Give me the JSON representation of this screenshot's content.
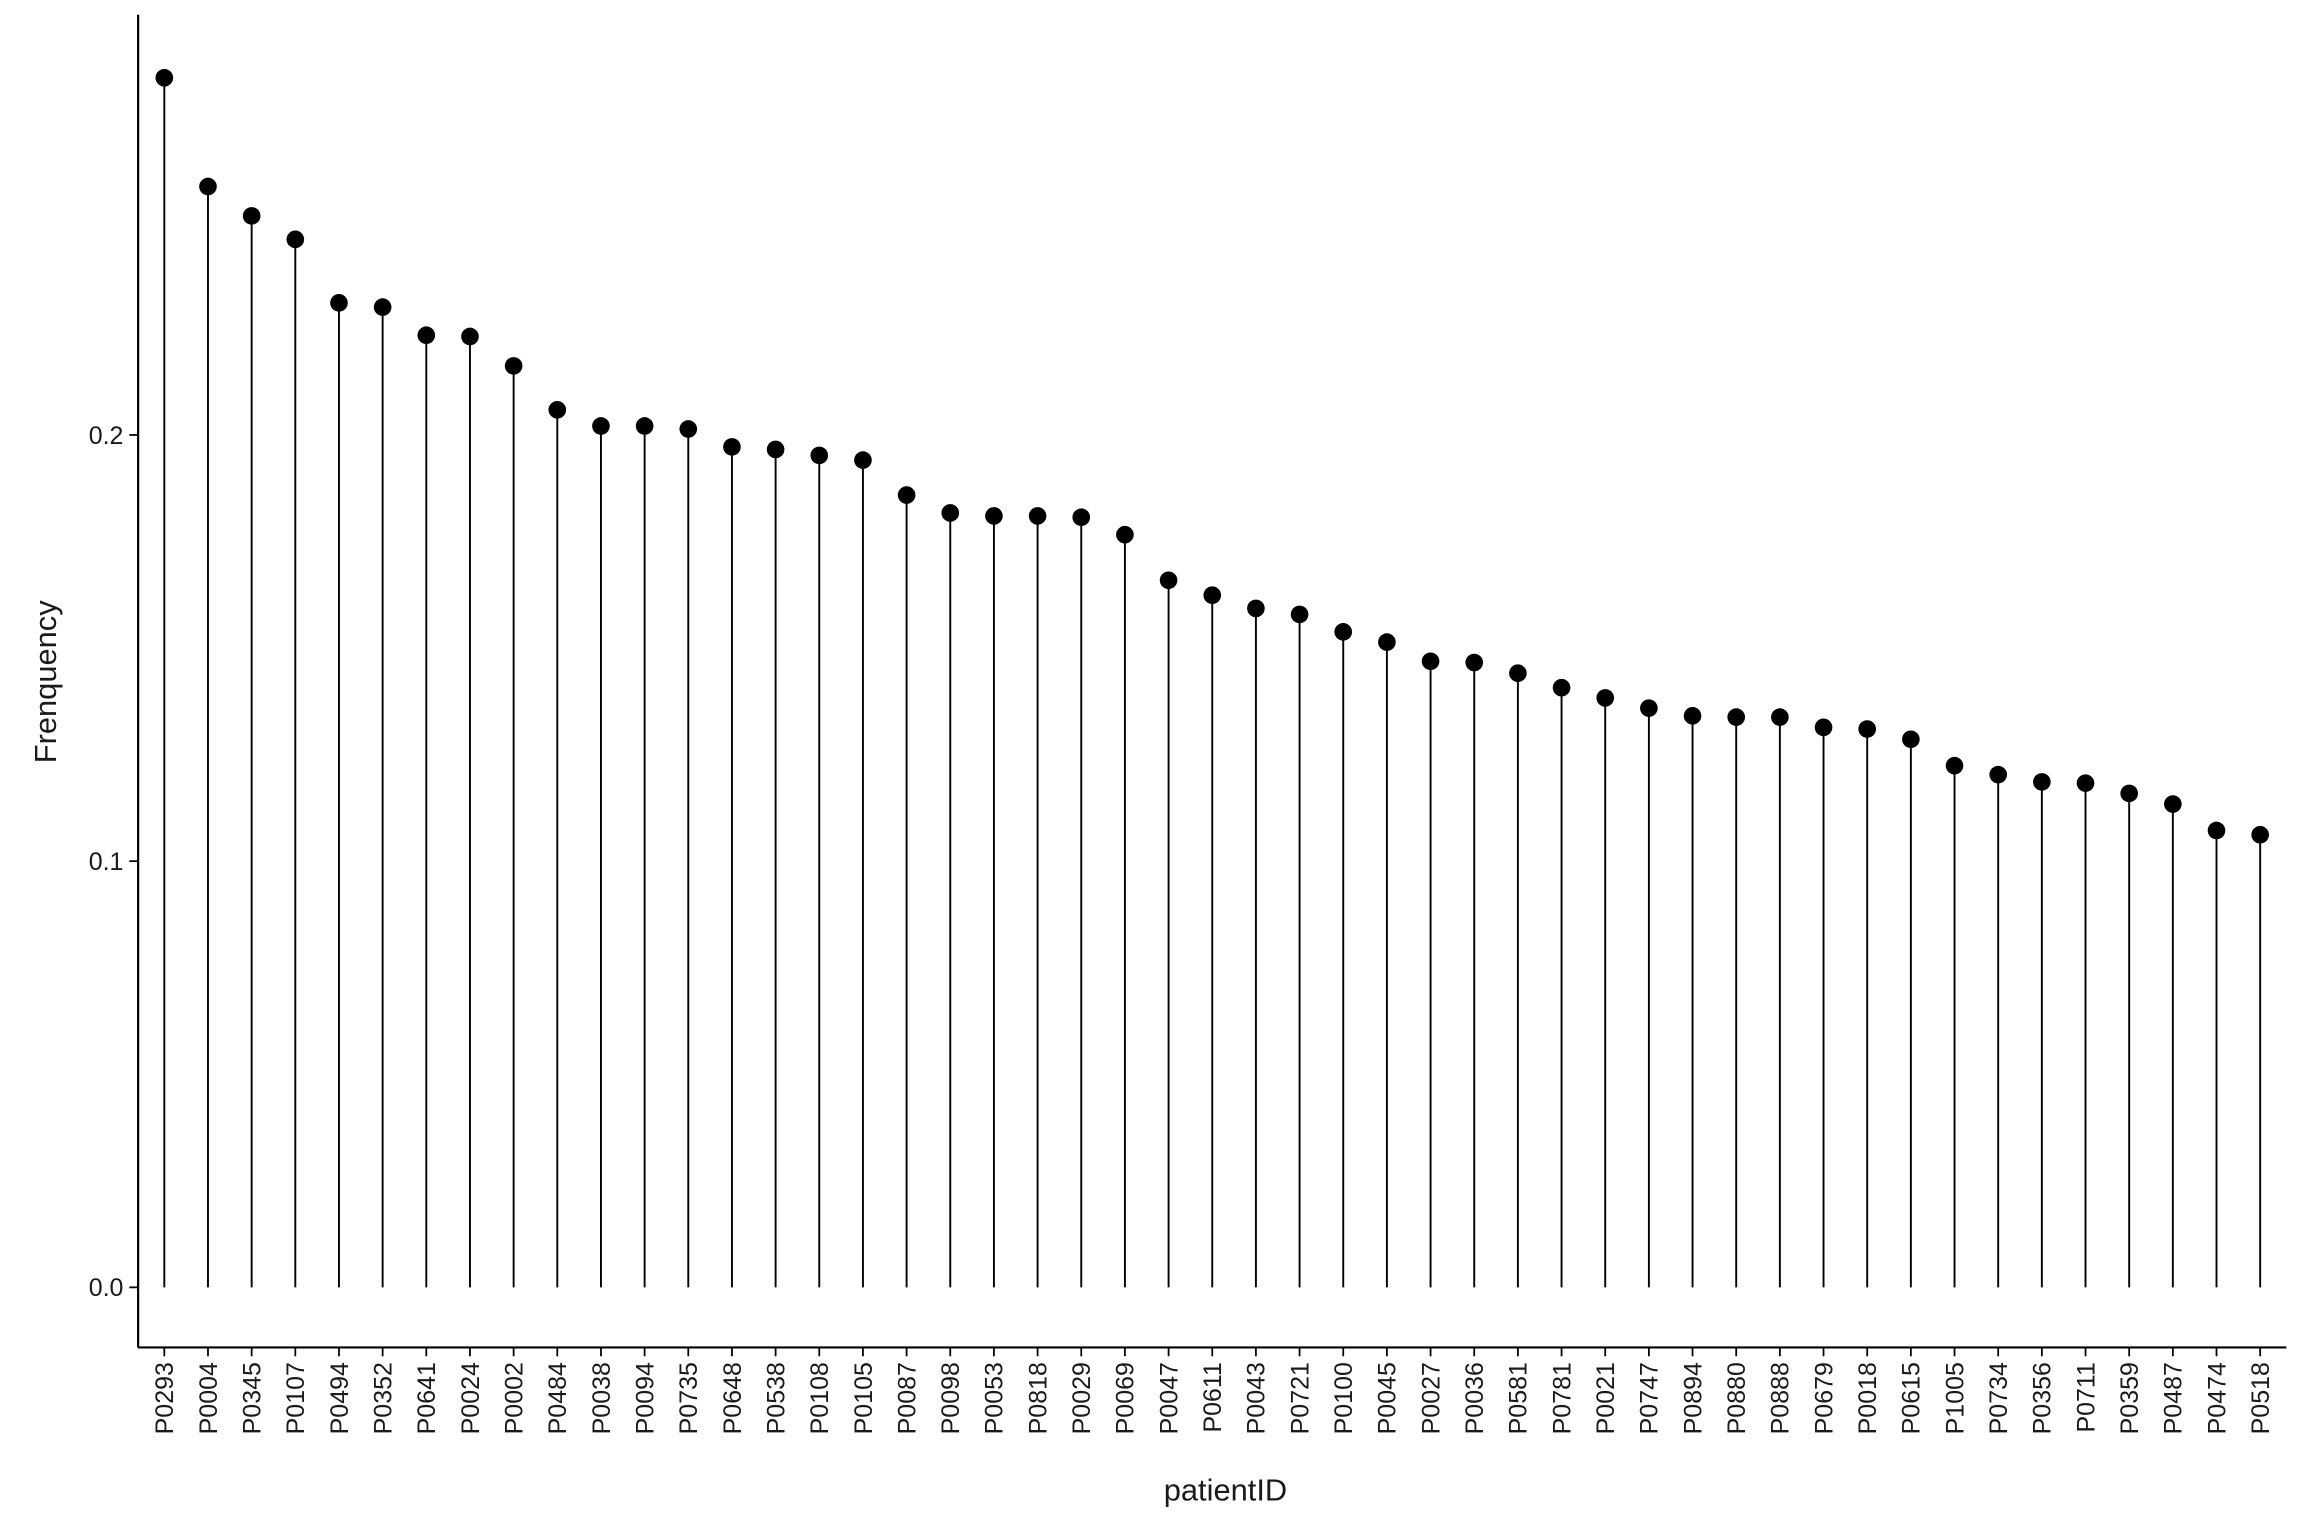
{
  "chart_data": {
    "type": "lollipop",
    "x_label": "patientID",
    "y_label": "Frenquency",
    "categories": [
      "P0293",
      "P0004",
      "P0345",
      "P0107",
      "P0494",
      "P0352",
      "P0641",
      "P0024",
      "P0002",
      "P0484",
      "P0038",
      "P0094",
      "P0735",
      "P0648",
      "P0538",
      "P0108",
      "P0105",
      "P0087",
      "P0098",
      "P0053",
      "P0818",
      "P0029",
      "P0069",
      "P0047",
      "P0611",
      "P0043",
      "P0721",
      "P0100",
      "P0045",
      "P0027",
      "P0036",
      "P0581",
      "P0781",
      "P0021",
      "P0747",
      "P0894",
      "P0880",
      "P0888",
      "P0679",
      "P0018",
      "P0615",
      "P1005",
      "P0734",
      "P0356",
      "P0711",
      "P0359",
      "P0487",
      "P0474",
      "P0518"
    ],
    "values": [
      0.2838,
      0.2583,
      0.2514,
      0.2459,
      0.231,
      0.23,
      0.2234,
      0.2231,
      0.2162,
      0.2059,
      0.2021,
      0.2021,
      0.2014,
      0.1972,
      0.1966,
      0.1952,
      0.1941,
      0.1859,
      0.1817,
      0.181,
      0.181,
      0.1807,
      0.1766,
      0.1659,
      0.1624,
      0.1593,
      0.1579,
      0.1538,
      0.1514,
      0.1469,
      0.1466,
      0.1441,
      0.1407,
      0.1383,
      0.1359,
      0.1341,
      0.1338,
      0.1338,
      0.1314,
      0.131,
      0.1286,
      0.1224,
      0.1203,
      0.1186,
      0.1183,
      0.1159,
      0.1134,
      0.1072,
      0.1062
    ],
    "color": "#000000",
    "ylim": [
      -0.0141,
      0.2986
    ],
    "yticks": [
      {
        "value": 0,
        "label": "0.0"
      },
      0.1,
      0.2
    ],
    "grid": false
  }
}
